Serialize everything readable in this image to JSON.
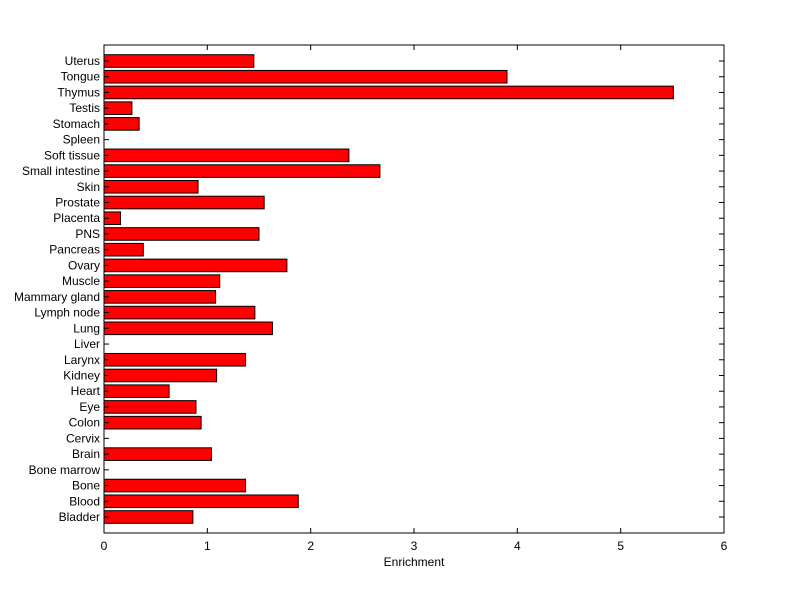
{
  "chart_data": {
    "type": "bar",
    "orientation": "horizontal",
    "title": "",
    "xlabel": "Enrichment",
    "ylabel": "",
    "xlim": [
      0,
      6
    ],
    "xticks": [
      "0",
      "1",
      "2",
      "3",
      "4",
      "5",
      "6"
    ],
    "grid": false,
    "bar_color": "#ff0000",
    "bar_edge_color": "#000000",
    "categories": [
      "Uterus",
      "Tongue",
      "Thymus",
      "Testis",
      "Stomach",
      "Spleen",
      "Soft tissue",
      "Small intestine",
      "Skin",
      "Prostate",
      "Placenta",
      "PNS",
      "Pancreas",
      "Ovary",
      "Muscle",
      "Mammary gland",
      "Lymph node",
      "Lung",
      "Liver",
      "Larynx",
      "Kidney",
      "Heart",
      "Eye",
      "Colon",
      "Cervix",
      "Brain",
      "Bone marrow",
      "Bone",
      "Blood",
      "Bladder"
    ],
    "values": [
      1.45,
      3.9,
      5.51,
      0.27,
      0.34,
      0,
      2.37,
      2.67,
      0.91,
      1.55,
      0.16,
      1.5,
      0.38,
      1.77,
      1.12,
      1.08,
      1.46,
      1.63,
      0,
      1.37,
      1.09,
      0.63,
      0.89,
      0.94,
      0,
      1.04,
      0,
      1.37,
      1.88,
      0.86
    ]
  }
}
